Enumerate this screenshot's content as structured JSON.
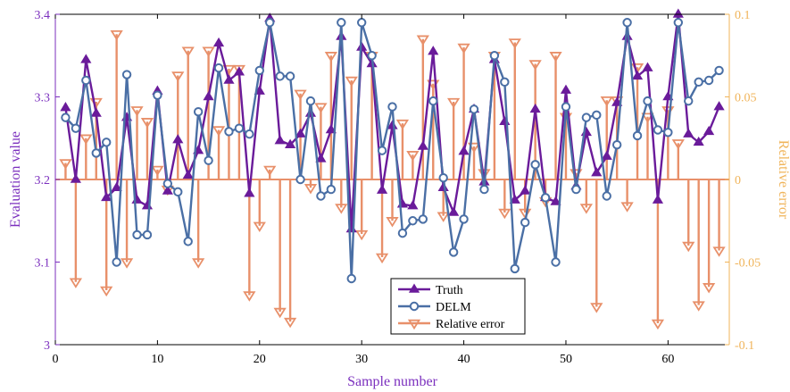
{
  "chart_data": {
    "type": "line",
    "xlabel": "Sample number",
    "ylabel_left": "Evaluation value",
    "ylabel_right": "Relative error",
    "xlim": [
      0,
      66
    ],
    "ylim_left": [
      3.0,
      3.4
    ],
    "ylim_right": [
      -0.1,
      0.1
    ],
    "x_ticks": [
      0,
      10,
      20,
      30,
      40,
      50,
      60
    ],
    "y_left_ticks": [
      3,
      3.1,
      3.2,
      3.3,
      3.4
    ],
    "y_left_tick_labels": [
      "3",
      "3.1",
      "3.2",
      "3.3",
      "3.4"
    ],
    "y_right_ticks": [
      -0.1,
      -0.05,
      0,
      0.05,
      0.1
    ],
    "y_right_tick_labels": [
      "-0.1",
      "-0.05",
      "0",
      "0.05",
      "0.1"
    ],
    "grid": false,
    "legend_position": "bottom-center",
    "colors": {
      "truth": "#6a1b9a",
      "delm": "#4a6fa5",
      "error": "#e8906a",
      "right_axis": "#f0b45a",
      "left_axis_label": "#7b2fbe"
    },
    "x": [
      1,
      2,
      3,
      4,
      5,
      6,
      7,
      8,
      9,
      10,
      11,
      12,
      13,
      14,
      15,
      16,
      17,
      18,
      19,
      20,
      21,
      22,
      23,
      24,
      25,
      26,
      27,
      28,
      29,
      30,
      31,
      32,
      33,
      34,
      35,
      36,
      37,
      38,
      39,
      40,
      41,
      42,
      43,
      44,
      45,
      46,
      47,
      48,
      49,
      50,
      51,
      52,
      53,
      54,
      55,
      56,
      57,
      58,
      59,
      60,
      61,
      62,
      63,
      64,
      65
    ],
    "series": [
      {
        "name": "Truth",
        "marker": "triangle-up",
        "axis": "left",
        "values": [
          3.287,
          3.2,
          3.345,
          3.28,
          3.178,
          3.19,
          3.275,
          3.175,
          3.168,
          3.307,
          3.186,
          3.248,
          3.205,
          3.235,
          3.3,
          3.365,
          3.32,
          3.33,
          3.183,
          3.307,
          3.395,
          3.247,
          3.242,
          3.255,
          3.28,
          3.225,
          3.26,
          3.373,
          3.14,
          3.36,
          3.34,
          3.187,
          3.265,
          3.17,
          3.168,
          3.24,
          3.355,
          3.19,
          3.16,
          3.234,
          3.285,
          3.197,
          3.345,
          3.27,
          3.175,
          3.186,
          3.285,
          3.178,
          3.173,
          3.308,
          3.192,
          3.257,
          3.208,
          3.228,
          3.293,
          3.373,
          3.325,
          3.335,
          3.175,
          3.3,
          3.4,
          3.255,
          3.245,
          3.258,
          3.288
        ]
      },
      {
        "name": "DELM",
        "marker": "circle",
        "axis": "left",
        "values": [
          3.275,
          3.262,
          3.32,
          3.232,
          3.245,
          3.1,
          3.327,
          3.133,
          3.133,
          3.302,
          3.195,
          3.185,
          3.125,
          3.282,
          3.223,
          3.335,
          3.258,
          3.262,
          3.255,
          3.332,
          3.39,
          3.325,
          3.325,
          3.2,
          3.295,
          3.18,
          3.188,
          3.39,
          3.08,
          3.39,
          3.35,
          3.235,
          3.288,
          3.135,
          3.15,
          3.152,
          3.295,
          3.202,
          3.112,
          3.152,
          3.285,
          3.188,
          3.35,
          3.318,
          3.092,
          3.148,
          3.218,
          3.178,
          3.1,
          3.288,
          3.188,
          3.275,
          3.278,
          3.18,
          3.242,
          3.39,
          3.253,
          3.295,
          3.26,
          3.257,
          3.39,
          3.295,
          3.318,
          3.32,
          3.332
        ]
      },
      {
        "name": "Relative error",
        "marker": "triangle-down-stem",
        "axis": "right",
        "values": [
          0.01,
          -0.062,
          0.025,
          0.047,
          -0.067,
          0.088,
          -0.05,
          0.042,
          0.035,
          0.006,
          -0.006,
          0.063,
          0.078,
          -0.05,
          0.078,
          0.03,
          0.067,
          0.067,
          -0.07,
          -0.028,
          0.006,
          -0.08,
          -0.086,
          0.052,
          -0.005,
          0.044,
          0.075,
          -0.017,
          0.06,
          -0.033,
          0.075,
          -0.047,
          -0.025,
          0.034,
          0.015,
          0.085,
          0.058,
          -0.022,
          0.047,
          0.08,
          0.02,
          0.004,
          0.075,
          -0.02,
          0.083,
          -0.02,
          0.07,
          -0.013,
          0.075,
          0.038,
          0.004,
          -0.017,
          -0.077,
          0.048,
          0.048,
          -0.016,
          0.068,
          0.038,
          -0.087,
          0.042,
          0.022,
          -0.04,
          -0.076,
          -0.065,
          -0.043
        ]
      }
    ]
  }
}
